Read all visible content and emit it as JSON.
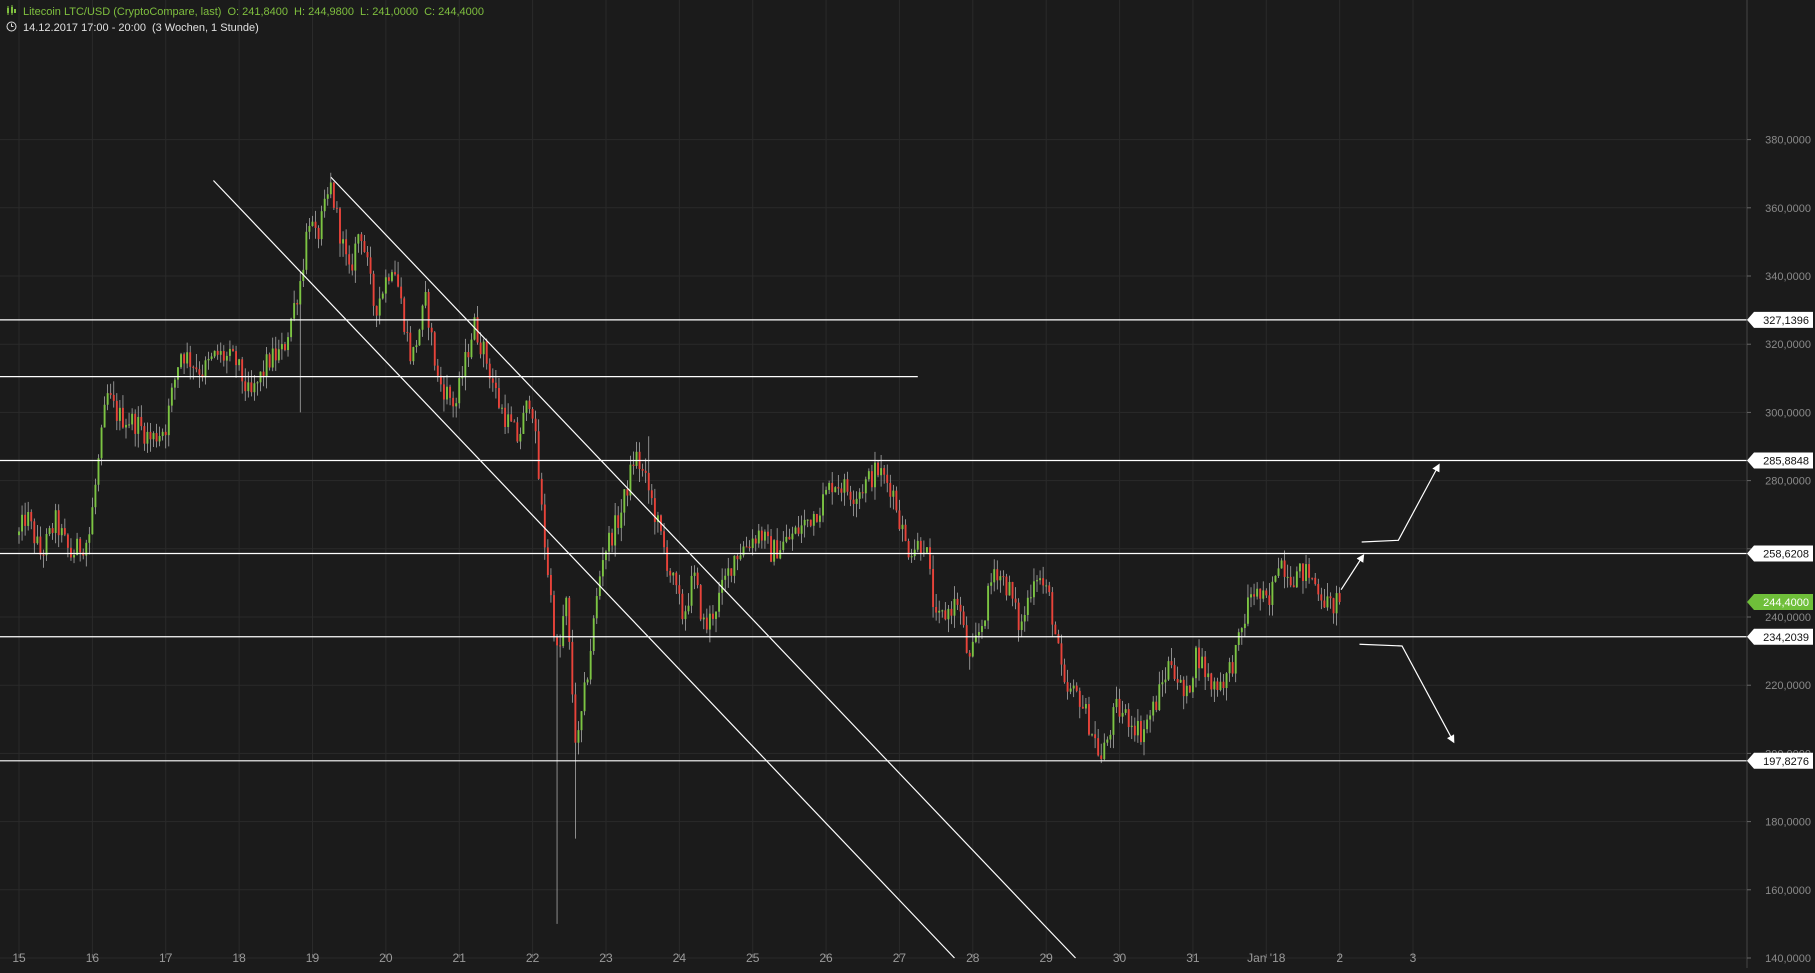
{
  "header": {
    "instrument": "Litecoin LTC/USD (CryptoCompare, last)",
    "open": "O: 241,8400",
    "high": "H: 244,9800",
    "low": "L: 241,0000",
    "close": "C: 244,4000",
    "datetime": "14.12.2017 17:00 - 20:00",
    "range": "(3 Wochen, 1 Stunde)"
  },
  "colors": {
    "background": "#1b1b1b",
    "up": "#7cc443",
    "down": "#e8433a",
    "grid": "#2a2a2a",
    "lines": "#ffffff",
    "last_price_tag": "#6fbf3a"
  },
  "icons": [
    "candles-icon",
    "clock-icon"
  ],
  "chart_data": {
    "type": "candlestick",
    "x_ticks": [
      "15",
      "16",
      "17",
      "18",
      "19",
      "20",
      "21",
      "22",
      "23",
      "24",
      "25",
      "26",
      "27",
      "28",
      "29",
      "30",
      "31",
      "Jan '18",
      "2",
      "3"
    ],
    "y_ticks": [
      "140,0000",
      "160,0000",
      "180,0000",
      "200,0000",
      "220,0000",
      "240,0000",
      "260,0000",
      "280,0000",
      "300,0000",
      "320,0000",
      "340,0000",
      "360,0000",
      "380,0000"
    ],
    "ylim": [
      140,
      385
    ],
    "last_price": {
      "value": 244.4,
      "label": "244,4000"
    },
    "horizontal_levels": [
      {
        "value": 327.1396,
        "label": "327,1396"
      },
      {
        "value": 285.8848,
        "label": "285,8848"
      },
      {
        "value": 258.6208,
        "label": "258,6208"
      },
      {
        "value": 234.2039,
        "label": "234,2039"
      },
      {
        "value": 197.8276,
        "label": "197,8276"
      },
      {
        "value": 310.5,
        "label": ""
      }
    ],
    "anchors": [
      {
        "d": 0.0,
        "p": 264
      },
      {
        "d": 0.1,
        "p": 270
      },
      {
        "d": 0.3,
        "p": 258
      },
      {
        "d": 0.5,
        "p": 268
      },
      {
        "d": 0.7,
        "p": 258
      },
      {
        "d": 0.95,
        "p": 263
      },
      {
        "d": 1.2,
        "p": 305
      },
      {
        "d": 1.35,
        "p": 299
      },
      {
        "d": 1.6,
        "p": 297
      },
      {
        "d": 1.8,
        "p": 292
      },
      {
        "d": 2.0,
        "p": 296
      },
      {
        "d": 2.2,
        "p": 318
      },
      {
        "d": 2.5,
        "p": 312
      },
      {
        "d": 2.7,
        "p": 317
      },
      {
        "d": 2.95,
        "p": 315
      },
      {
        "d": 3.15,
        "p": 304
      },
      {
        "d": 3.4,
        "p": 315
      },
      {
        "d": 3.6,
        "p": 318
      },
      {
        "d": 3.85,
        "p": 340
      },
      {
        "d": 3.95,
        "p": 358
      },
      {
        "d": 4.05,
        "p": 350
      },
      {
        "d": 4.25,
        "p": 366
      },
      {
        "d": 4.5,
        "p": 340
      },
      {
        "d": 4.65,
        "p": 355
      },
      {
        "d": 4.85,
        "p": 330
      },
      {
        "d": 5.1,
        "p": 345
      },
      {
        "d": 5.35,
        "p": 315
      },
      {
        "d": 5.55,
        "p": 333
      },
      {
        "d": 5.7,
        "p": 310
      },
      {
        "d": 5.95,
        "p": 302
      },
      {
        "d": 6.2,
        "p": 326
      },
      {
        "d": 6.35,
        "p": 317
      },
      {
        "d": 6.55,
        "p": 302
      },
      {
        "d": 6.8,
        "p": 292
      },
      {
        "d": 6.98,
        "p": 306
      },
      {
        "d": 7.15,
        "p": 265
      },
      {
        "d": 7.35,
        "p": 226
      },
      {
        "d": 7.45,
        "p": 246
      },
      {
        "d": 7.6,
        "p": 200
      },
      {
        "d": 7.75,
        "p": 224
      },
      {
        "d": 7.95,
        "p": 258
      },
      {
        "d": 8.2,
        "p": 270
      },
      {
        "d": 8.4,
        "p": 288
      },
      {
        "d": 8.6,
        "p": 276
      },
      {
        "d": 8.85,
        "p": 255
      },
      {
        "d": 9.05,
        "p": 240
      },
      {
        "d": 9.2,
        "p": 252
      },
      {
        "d": 9.35,
        "p": 236
      },
      {
        "d": 9.55,
        "p": 246
      },
      {
        "d": 9.75,
        "p": 258
      },
      {
        "d": 10.1,
        "p": 265
      },
      {
        "d": 10.25,
        "p": 259
      },
      {
        "d": 10.45,
        "p": 262
      },
      {
        "d": 10.65,
        "p": 266
      },
      {
        "d": 10.9,
        "p": 272
      },
      {
        "d": 11.1,
        "p": 280
      },
      {
        "d": 11.4,
        "p": 276
      },
      {
        "d": 11.7,
        "p": 283
      },
      {
        "d": 11.9,
        "p": 278
      },
      {
        "d": 12.1,
        "p": 260
      },
      {
        "d": 12.35,
        "p": 262
      },
      {
        "d": 12.5,
        "p": 238
      },
      {
        "d": 12.8,
        "p": 245
      },
      {
        "d": 12.95,
        "p": 226
      },
      {
        "d": 13.15,
        "p": 240
      },
      {
        "d": 13.3,
        "p": 255
      },
      {
        "d": 13.5,
        "p": 248
      },
      {
        "d": 13.65,
        "p": 236
      },
      {
        "d": 13.85,
        "p": 254
      },
      {
        "d": 14.05,
        "p": 245
      },
      {
        "d": 14.25,
        "p": 218
      },
      {
        "d": 14.45,
        "p": 217
      },
      {
        "d": 14.65,
        "p": 205
      },
      {
        "d": 14.75,
        "p": 198
      },
      {
        "d": 14.95,
        "p": 213
      },
      {
        "d": 15.15,
        "p": 210
      },
      {
        "d": 15.3,
        "p": 206
      },
      {
        "d": 15.5,
        "p": 215
      },
      {
        "d": 15.7,
        "p": 228
      },
      {
        "d": 15.9,
        "p": 215
      },
      {
        "d": 16.05,
        "p": 230
      },
      {
        "d": 16.25,
        "p": 220
      },
      {
        "d": 16.45,
        "p": 222
      },
      {
        "d": 16.6,
        "p": 230
      },
      {
        "d": 16.8,
        "p": 248
      },
      {
        "d": 17.05,
        "p": 243
      },
      {
        "d": 17.15,
        "p": 258
      },
      {
        "d": 17.35,
        "p": 252
      },
      {
        "d": 17.55,
        "p": 253
      },
      {
        "d": 17.7,
        "p": 249
      },
      {
        "d": 17.85,
        "p": 243
      },
      {
        "d": 18.0,
        "p": 244.4
      }
    ],
    "drawn_lines": [
      {
        "kind": "trend",
        "from": {
          "d": 2.65,
          "p": 368
        },
        "to": {
          "d": 12.75,
          "p": 140
        }
      },
      {
        "kind": "trend",
        "from": {
          "d": 4.25,
          "p": 369
        },
        "to": {
          "d": 14.4,
          "p": 140
        }
      },
      {
        "kind": "arrow",
        "points": [
          {
            "d": 18.3,
            "p": 262
          },
          {
            "d": 18.8,
            "p": 262.5
          },
          {
            "d": 19.35,
            "p": 284.5
          }
        ]
      },
      {
        "kind": "arrow",
        "points": [
          {
            "d": 18.02,
            "p": 248
          },
          {
            "d": 18.32,
            "p": 258
          }
        ]
      },
      {
        "kind": "arrow",
        "points": [
          {
            "d": 18.27,
            "p": 232
          },
          {
            "d": 18.85,
            "p": 231.5
          },
          {
            "d": 19.55,
            "p": 203.5
          }
        ]
      }
    ]
  }
}
